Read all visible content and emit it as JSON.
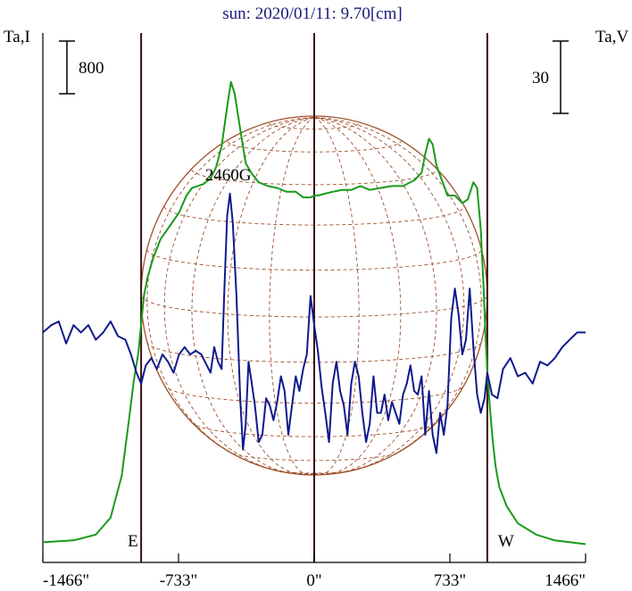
{
  "chart_data": {
    "type": "line",
    "title": "sun: 2020/01/11: 9.70[cm]",
    "left_axis_label": "Ta,I",
    "right_axis_label": "Ta,V",
    "left_scale_bar": "800",
    "right_scale_bar": "30",
    "x_ticks": [
      "-1466\"",
      "-733\"",
      "0\"",
      "733\"",
      "1466\""
    ],
    "x_tick_values": [
      -1466,
      -733,
      0,
      733,
      1466
    ],
    "xlim": [
      -1466,
      1466
    ],
    "limb_markers": [
      {
        "label": "E",
        "x": -935
      },
      {
        "label": "W",
        "x": 935
      }
    ],
    "center_marker": 0,
    "annotation": {
      "text": "2460G",
      "x": -465
    },
    "solar_disk_radius": 935,
    "grid": false,
    "colors": {
      "intensity": "#1a9a1a",
      "polarization": "#101a8c",
      "disk": "#a0522d",
      "markers": "#3a1010",
      "title": "#1a1a7a"
    },
    "series": [
      {
        "name": "Ta,I",
        "axis": "left",
        "x": [
          -1466,
          -1300,
          -1180,
          -1100,
          -1040,
          -1000,
          -975,
          -950,
          -935,
          -920,
          -900,
          -870,
          -830,
          -780,
          -730,
          -690,
          -660,
          -630,
          -600,
          -560,
          -530,
          -500,
          -470,
          -450,
          -430,
          -400,
          -370,
          -340,
          -300,
          -250,
          -200,
          -150,
          -100,
          -60,
          -20,
          0,
          20,
          60,
          100,
          150,
          200,
          250,
          300,
          360,
          420,
          480,
          540,
          580,
          600,
          620,
          640,
          660,
          690,
          720,
          760,
          800,
          830,
          860,
          880,
          900,
          915,
          925,
          935,
          950,
          965,
          980,
          1000,
          1040,
          1100,
          1200,
          1300,
          1466
        ],
        "y": [
          50,
          60,
          90,
          180,
          400,
          700,
          900,
          1050,
          1200,
          1350,
          1450,
          1550,
          1650,
          1720,
          1790,
          1880,
          1920,
          1930,
          1940,
          1970,
          2030,
          2140,
          2350,
          2480,
          2420,
          2230,
          2050,
          2000,
          1950,
          1930,
          1920,
          1900,
          1900,
          1870,
          1870,
          1880,
          1880,
          1890,
          1900,
          1910,
          1910,
          1930,
          1910,
          1920,
          1930,
          1930,
          1960,
          2000,
          2100,
          2180,
          2150,
          2040,
          1960,
          1880,
          1880,
          1840,
          1860,
          1950,
          1920,
          1700,
          1400,
          1150,
          950,
          750,
          580,
          450,
          340,
          240,
          150,
          90,
          60,
          40
        ],
        "ylim": [
          0,
          2700
        ]
      },
      {
        "name": "Ta,V",
        "axis": "right",
        "x": [
          -1466,
          -1420,
          -1380,
          -1340,
          -1300,
          -1260,
          -1220,
          -1180,
          -1140,
          -1100,
          -1060,
          -1020,
          -990,
          -960,
          -935,
          -910,
          -880,
          -850,
          -820,
          -790,
          -760,
          -730,
          -700,
          -670,
          -640,
          -610,
          -580,
          -560,
          -540,
          -520,
          -500,
          -485,
          -470,
          -455,
          -440,
          -420,
          -400,
          -385,
          -370,
          -355,
          -340,
          -320,
          -300,
          -280,
          -260,
          -240,
          -220,
          -200,
          -180,
          -160,
          -140,
          -120,
          -100,
          -80,
          -60,
          -40,
          -20,
          0,
          20,
          40,
          60,
          80,
          100,
          120,
          140,
          160,
          180,
          200,
          220,
          240,
          260,
          280,
          300,
          320,
          340,
          360,
          380,
          400,
          420,
          440,
          460,
          480,
          500,
          520,
          540,
          560,
          580,
          600,
          620,
          640,
          660,
          680,
          700,
          720,
          740,
          760,
          780,
          800,
          820,
          840,
          860,
          880,
          900,
          920,
          935,
          960,
          990,
          1020,
          1060,
          1100,
          1140,
          1180,
          1220,
          1260,
          1300,
          1340,
          1380,
          1420,
          1466
        ],
        "y": [
          0,
          2,
          3,
          -3,
          2,
          0,
          2,
          -2,
          0,
          3,
          -1,
          -2,
          -6,
          -11,
          -14,
          -9,
          -7,
          -10,
          -6,
          -8,
          -11,
          -6,
          -4,
          -6,
          -5,
          -6,
          -9,
          -11,
          -4,
          -8,
          -10,
          12,
          32,
          38,
          30,
          10,
          -18,
          -32,
          -25,
          -8,
          -13,
          -20,
          -30,
          -28,
          -18,
          -20,
          -24,
          -19,
          -12,
          -16,
          -28,
          -20,
          -12,
          -16,
          -10,
          -6,
          10,
          2,
          -5,
          -15,
          -22,
          -30,
          -14,
          -8,
          -16,
          -20,
          -28,
          -14,
          -8,
          -12,
          -22,
          -30,
          -25,
          -12,
          -22,
          -22,
          -17,
          -24,
          -19,
          -22,
          -25,
          -17,
          -14,
          -9,
          -16,
          -17,
          -12,
          -28,
          -16,
          -28,
          -33,
          -22,
          -28,
          -20,
          4,
          12,
          5,
          -6,
          -2,
          12,
          -4,
          -17,
          -22,
          -18,
          -11,
          -17,
          -18,
          -10,
          -7,
          -12,
          -11,
          -14,
          -8,
          -9,
          -7,
          -4,
          -2,
          0,
          0
        ],
        "ylim": [
          -60,
          80
        ]
      }
    ]
  }
}
